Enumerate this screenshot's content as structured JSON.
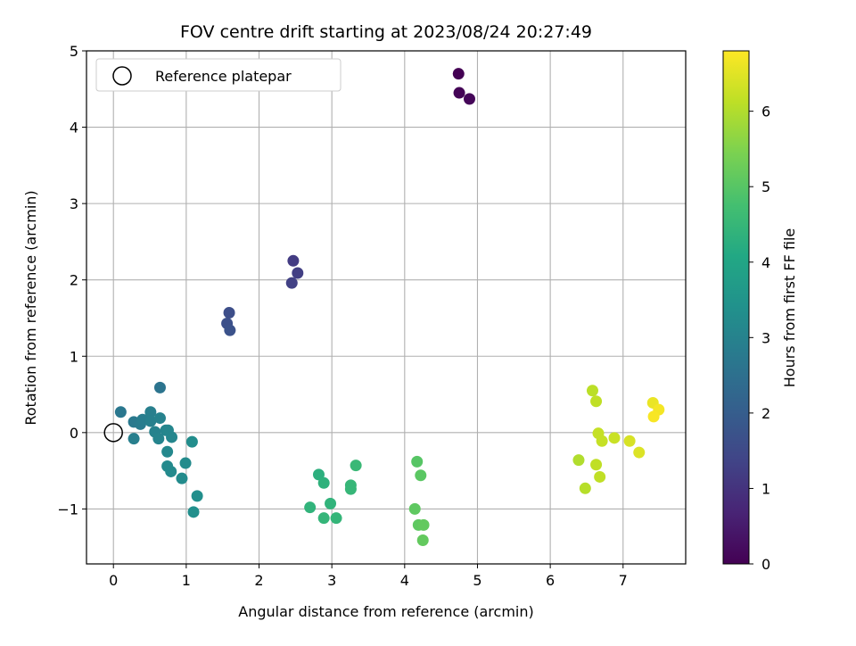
{
  "chart_data": {
    "type": "scatter",
    "title": "FOV centre drift starting at 2023/08/24 20:27:49",
    "xlabel": "Angular distance from reference (arcmin)",
    "ylabel": "Rotation from reference (arcmin)",
    "xlim": [
      -0.37,
      7.86
    ],
    "ylim": [
      -1.72,
      5.0
    ],
    "xticks": [
      "0",
      "1",
      "2",
      "3",
      "4",
      "5",
      "6",
      "7"
    ],
    "yticks": [
      "−1",
      "0",
      "1",
      "2",
      "3",
      "4",
      "5"
    ],
    "grid": true,
    "legend": {
      "placement": "top-left",
      "label": "Reference platepar"
    },
    "reference_point": {
      "x": 0,
      "y": 0
    },
    "colorbar": {
      "label": "Hours from first FF file",
      "range": [
        0,
        6.8
      ],
      "ticks": [
        "0",
        "1",
        "2",
        "3",
        "4",
        "5",
        "6"
      ],
      "colormap": "viridis"
    },
    "points": [
      {
        "x": 4.74,
        "y": 4.7,
        "c": 0.0
      },
      {
        "x": 4.75,
        "y": 4.45,
        "c": 0.05
      },
      {
        "x": 4.89,
        "y": 4.37,
        "c": 0.1
      },
      {
        "x": 2.47,
        "y": 2.25,
        "c": 1.2
      },
      {
        "x": 2.53,
        "y": 2.09,
        "c": 1.25
      },
      {
        "x": 2.45,
        "y": 1.96,
        "c": 1.3
      },
      {
        "x": 1.59,
        "y": 1.57,
        "c": 1.6
      },
      {
        "x": 1.56,
        "y": 1.43,
        "c": 1.65
      },
      {
        "x": 1.6,
        "y": 1.34,
        "c": 1.7
      },
      {
        "x": 0.64,
        "y": 0.59,
        "c": 2.6
      },
      {
        "x": 0.1,
        "y": 0.27,
        "c": 2.7
      },
      {
        "x": 0.28,
        "y": 0.14,
        "c": 2.75
      },
      {
        "x": 0.37,
        "y": 0.11,
        "c": 2.8
      },
      {
        "x": 0.4,
        "y": 0.17,
        "c": 2.85
      },
      {
        "x": 0.51,
        "y": 0.27,
        "c": 2.9
      },
      {
        "x": 0.51,
        "y": 0.15,
        "c": 2.95
      },
      {
        "x": 0.64,
        "y": 0.19,
        "c": 3.0
      },
      {
        "x": 0.57,
        "y": 0.01,
        "c": 3.0
      },
      {
        "x": 0.62,
        "y": -0.08,
        "c": 3.05
      },
      {
        "x": 0.72,
        "y": 0.03,
        "c": 3.05
      },
      {
        "x": 0.75,
        "y": 0.03,
        "c": 3.1
      },
      {
        "x": 0.8,
        "y": -0.06,
        "c": 3.1
      },
      {
        "x": 0.28,
        "y": -0.08,
        "c": 2.9
      },
      {
        "x": 0.74,
        "y": -0.25,
        "c": 3.15
      },
      {
        "x": 0.74,
        "y": -0.44,
        "c": 3.2
      },
      {
        "x": 0.79,
        "y": -0.51,
        "c": 3.2
      },
      {
        "x": 0.94,
        "y": -0.6,
        "c": 3.25
      },
      {
        "x": 0.99,
        "y": -0.4,
        "c": 3.25
      },
      {
        "x": 1.08,
        "y": -0.12,
        "c": 3.3
      },
      {
        "x": 1.15,
        "y": -0.83,
        "c": 3.35
      },
      {
        "x": 1.1,
        "y": -1.04,
        "c": 3.35
      },
      {
        "x": 2.82,
        "y": -0.55,
        "c": 4.3
      },
      {
        "x": 2.89,
        "y": -0.66,
        "c": 4.35
      },
      {
        "x": 2.7,
        "y": -0.98,
        "c": 4.4
      },
      {
        "x": 2.98,
        "y": -0.93,
        "c": 4.4
      },
      {
        "x": 2.89,
        "y": -1.12,
        "c": 4.45
      },
      {
        "x": 3.06,
        "y": -1.12,
        "c": 4.45
      },
      {
        "x": 3.26,
        "y": -0.69,
        "c": 4.5
      },
      {
        "x": 3.26,
        "y": -0.74,
        "c": 4.5
      },
      {
        "x": 3.33,
        "y": -0.43,
        "c": 4.55
      },
      {
        "x": 4.17,
        "y": -0.38,
        "c": 5.0
      },
      {
        "x": 4.22,
        "y": -0.56,
        "c": 5.05
      },
      {
        "x": 4.14,
        "y": -1.0,
        "c": 5.1
      },
      {
        "x": 4.19,
        "y": -1.21,
        "c": 5.1
      },
      {
        "x": 4.26,
        "y": -1.21,
        "c": 5.15
      },
      {
        "x": 4.25,
        "y": -1.41,
        "c": 5.15
      },
      {
        "x": 6.58,
        "y": 0.55,
        "c": 6.1
      },
      {
        "x": 6.63,
        "y": 0.41,
        "c": 6.15
      },
      {
        "x": 6.66,
        "y": -0.01,
        "c": 6.2
      },
      {
        "x": 6.71,
        "y": -0.11,
        "c": 6.2
      },
      {
        "x": 6.88,
        "y": -0.07,
        "c": 6.25
      },
      {
        "x": 6.39,
        "y": -0.36,
        "c": 6.0
      },
      {
        "x": 6.48,
        "y": -0.73,
        "c": 6.05
      },
      {
        "x": 6.63,
        "y": -0.42,
        "c": 6.15
      },
      {
        "x": 6.68,
        "y": -0.58,
        "c": 6.15
      },
      {
        "x": 7.09,
        "y": -0.11,
        "c": 6.4
      },
      {
        "x": 7.22,
        "y": -0.26,
        "c": 6.45
      },
      {
        "x": 7.41,
        "y": 0.39,
        "c": 6.6
      },
      {
        "x": 7.49,
        "y": 0.3,
        "c": 6.7
      },
      {
        "x": 7.42,
        "y": 0.21,
        "c": 6.75
      }
    ]
  }
}
